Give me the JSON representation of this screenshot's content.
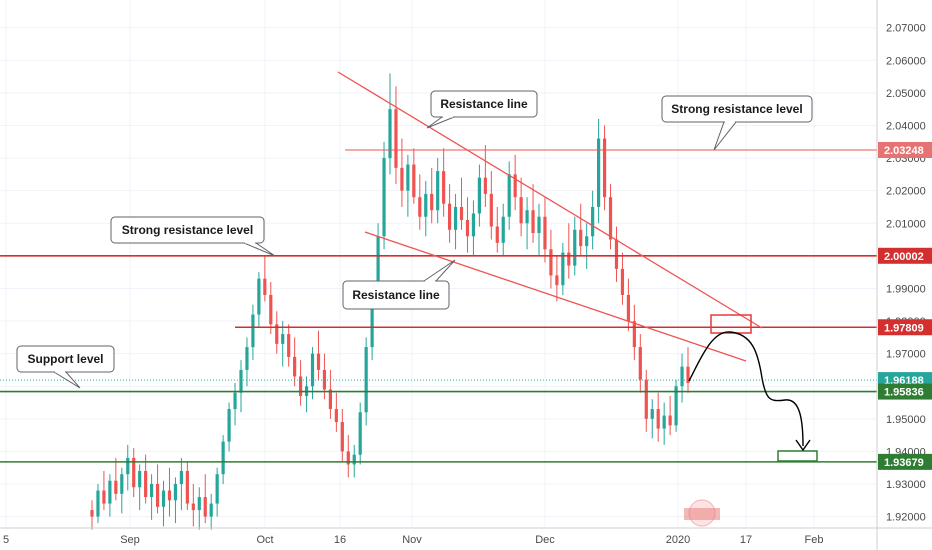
{
  "chart_data": {
    "type": "candlestick",
    "y_axis": {
      "ticks": [
        "2.07000",
        "2.06000",
        "2.05000",
        "2.04000",
        "2.03000",
        "2.02000",
        "2.01000",
        "2.00000",
        "1.99000",
        "1.98000",
        "1.97000",
        "1.96000",
        "1.95000",
        "1.94000",
        "1.93000",
        "1.92000"
      ],
      "range": [
        1.9165,
        2.0785
      ]
    },
    "x_axis": {
      "ticks": [
        "5",
        "Sep",
        "Oct",
        "16",
        "Nov",
        "Dec",
        "2020",
        "17",
        "Feb"
      ]
    },
    "price_labels": [
      {
        "value": "2.03248",
        "color": "#e57373"
      },
      {
        "value": "2.00002",
        "color": "#d32f2f"
      },
      {
        "value": "1.97809",
        "color": "#d32f2f"
      },
      {
        "value": "1.96188",
        "color": "#26a69a"
      },
      {
        "value": "1.95836",
        "color": "#2e7d32"
      },
      {
        "value": "1.93679",
        "color": "#2e7d32"
      }
    ],
    "annotations": [
      "Resistance line",
      "Strong resistance level",
      "Strong resistance level",
      "Resistance line",
      "Support level"
    ],
    "candles_ohlc": [
      [
        1.922,
        1.925,
        1.916,
        1.92
      ],
      [
        1.92,
        1.93,
        1.918,
        1.928
      ],
      [
        1.928,
        1.934,
        1.922,
        1.924
      ],
      [
        1.924,
        1.933,
        1.92,
        1.931
      ],
      [
        1.931,
        1.938,
        1.925,
        1.927
      ],
      [
        1.927,
        1.935,
        1.921,
        1.933
      ],
      [
        1.933,
        1.942,
        1.928,
        1.938
      ],
      [
        1.938,
        1.941,
        1.926,
        1.929
      ],
      [
        1.929,
        1.936,
        1.922,
        1.934
      ],
      [
        1.934,
        1.939,
        1.924,
        1.926
      ],
      [
        1.926,
        1.933,
        1.919,
        1.93
      ],
      [
        1.93,
        1.936,
        1.921,
        1.923
      ],
      [
        1.923,
        1.931,
        1.917,
        1.928
      ],
      [
        1.928,
        1.935,
        1.92,
        1.925
      ],
      [
        1.925,
        1.932,
        1.918,
        1.93
      ],
      [
        1.93,
        1.938,
        1.922,
        1.934
      ],
      [
        1.934,
        1.937,
        1.922,
        1.924
      ],
      [
        1.924,
        1.93,
        1.917,
        1.922
      ],
      [
        1.922,
        1.929,
        1.916,
        1.926
      ],
      [
        1.926,
        1.933,
        1.918,
        1.92
      ],
      [
        1.92,
        1.927,
        1.916,
        1.924
      ],
      [
        1.924,
        1.935,
        1.92,
        1.933
      ],
      [
        1.933,
        1.945,
        1.93,
        1.943
      ],
      [
        1.943,
        1.955,
        1.94,
        1.953
      ],
      [
        1.953,
        1.961,
        1.948,
        1.958
      ],
      [
        1.958,
        1.968,
        1.952,
        1.965
      ],
      [
        1.965,
        1.975,
        1.96,
        1.972
      ],
      [
        1.972,
        1.985,
        1.968,
        1.982
      ],
      [
        1.982,
        1.995,
        1.978,
        1.993
      ],
      [
        1.993,
        2.0,
        1.986,
        1.988
      ],
      [
        1.988,
        1.992,
        1.976,
        1.979
      ],
      [
        1.979,
        1.983,
        1.97,
        1.973
      ],
      [
        1.973,
        1.98,
        1.966,
        1.976
      ],
      [
        1.976,
        1.979,
        1.966,
        1.969
      ],
      [
        1.969,
        1.975,
        1.96,
        1.963
      ],
      [
        1.963,
        1.968,
        1.954,
        1.957
      ],
      [
        1.957,
        1.963,
        1.952,
        1.96
      ],
      [
        1.96,
        1.972,
        1.956,
        1.97
      ],
      [
        1.97,
        1.977,
        1.962,
        1.965
      ],
      [
        1.965,
        1.97,
        1.956,
        1.959
      ],
      [
        1.959,
        1.965,
        1.95,
        1.953
      ],
      [
        1.953,
        1.958,
        1.946,
        1.949
      ],
      [
        1.949,
        1.953,
        1.937,
        1.94
      ],
      [
        1.94,
        1.945,
        1.932,
        1.936
      ],
      [
        1.936,
        1.942,
        1.932,
        1.939
      ],
      [
        1.939,
        1.955,
        1.936,
        1.952
      ],
      [
        1.952,
        1.975,
        1.948,
        1.972
      ],
      [
        1.972,
        1.992,
        1.968,
        1.99
      ],
      [
        1.99,
        2.01,
        1.986,
        2.006
      ],
      [
        2.006,
        2.035,
        2.002,
        2.03
      ],
      [
        2.03,
        2.056,
        2.025,
        2.045
      ],
      [
        2.045,
        2.052,
        2.022,
        2.027
      ],
      [
        2.027,
        2.036,
        2.015,
        2.02
      ],
      [
        2.02,
        2.031,
        2.012,
        2.028
      ],
      [
        2.028,
        2.033,
        2.016,
        2.018
      ],
      [
        2.018,
        2.025,
        2.008,
        2.012
      ],
      [
        2.012,
        2.023,
        2.006,
        2.019
      ],
      [
        2.019,
        2.027,
        2.01,
        2.014
      ],
      [
        2.014,
        2.03,
        2.01,
        2.026
      ],
      [
        2.026,
        2.033,
        2.012,
        2.016
      ],
      [
        2.016,
        2.022,
        2.004,
        2.008
      ],
      [
        2.008,
        2.019,
        2.002,
        2.015
      ],
      [
        2.015,
        2.024,
        2.008,
        2.011
      ],
      [
        2.011,
        2.018,
        2.001,
        2.006
      ],
      [
        2.006,
        2.017,
        2.0,
        2.013
      ],
      [
        2.013,
        2.028,
        2.009,
        2.024
      ],
      [
        2.024,
        2.034,
        2.015,
        2.019
      ],
      [
        2.019,
        2.026,
        2.005,
        2.009
      ],
      [
        2.009,
        2.015,
        2.001,
        2.004
      ],
      [
        2.004,
        2.016,
        2.0,
        2.012
      ],
      [
        2.012,
        2.029,
        2.008,
        2.025
      ],
      [
        2.025,
        2.031,
        2.014,
        2.018
      ],
      [
        2.018,
        2.024,
        2.006,
        2.01
      ],
      [
        2.01,
        2.018,
        2.002,
        2.014
      ],
      [
        2.014,
        2.022,
        2.004,
        2.007
      ],
      [
        2.007,
        2.016,
        2.0,
        2.012
      ],
      [
        2.012,
        2.018,
        1.998,
        2.002
      ],
      [
        2.002,
        2.008,
        1.99,
        1.994
      ],
      [
        1.994,
        2.0,
        1.986,
        1.991
      ],
      [
        1.991,
        2.004,
        1.988,
        2.001
      ],
      [
        2.001,
        2.01,
        1.993,
        1.997
      ],
      [
        1.997,
        2.012,
        1.994,
        2.008
      ],
      [
        2.008,
        2.016,
        2.0,
        2.003
      ],
      [
        2.003,
        2.01,
        1.996,
        2.006
      ],
      [
        2.006,
        2.02,
        2.002,
        2.015
      ],
      [
        2.015,
        2.042,
        2.01,
        2.036
      ],
      [
        2.036,
        2.04,
        2.014,
        2.018
      ],
      [
        2.018,
        2.022,
        2.002,
        2.005
      ],
      [
        2.005,
        2.009,
        1.992,
        1.996
      ],
      [
        1.996,
        2.001,
        1.985,
        1.988
      ],
      [
        1.988,
        1.993,
        1.977,
        1.98
      ],
      [
        1.98,
        1.985,
        1.968,
        1.972
      ],
      [
        1.972,
        1.976,
        1.958,
        1.962
      ],
      [
        1.962,
        1.965,
        1.946,
        1.95
      ],
      [
        1.95,
        1.956,
        1.944,
        1.953
      ],
      [
        1.953,
        1.958,
        1.943,
        1.947
      ],
      [
        1.947,
        1.955,
        1.942,
        1.951
      ],
      [
        1.951,
        1.957,
        1.945,
        1.948
      ],
      [
        1.948,
        1.962,
        1.946,
        1.96
      ],
      [
        1.96,
        1.97,
        1.955,
        1.966
      ],
      [
        1.966,
        1.972,
        1.958,
        1.961
      ]
    ],
    "projection_path": "price rises to the 1.97809 resistance box, then falls toward the 1.93679 support box",
    "colors": {
      "bullish": "#26a69a",
      "bearish": "#ef5350",
      "trend_line": "#ef5350",
      "resistance": "#d32f2f",
      "support": "#2e7d32"
    }
  }
}
